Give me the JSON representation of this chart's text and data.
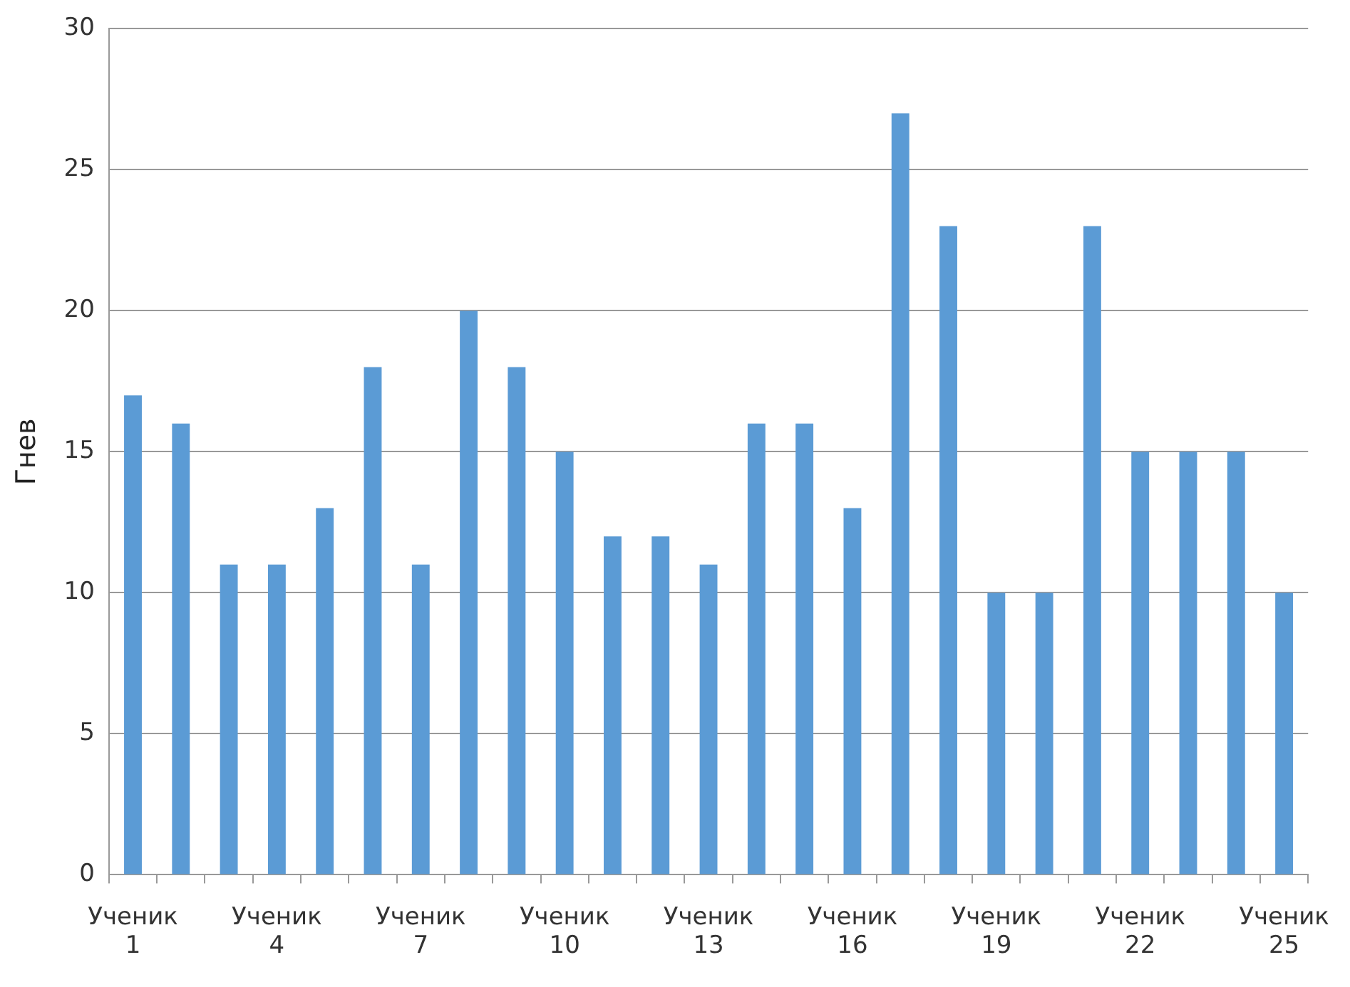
{
  "chart_data": {
    "type": "bar",
    "ylabel": "Гнев",
    "categories": [
      "Ученик 1",
      null,
      null,
      "Ученик 4",
      null,
      null,
      "Ученик 7",
      null,
      null,
      "Ученик 10",
      null,
      null,
      "Ученик 13",
      null,
      null,
      "Ученик 16",
      null,
      null,
      "Ученик 19",
      null,
      null,
      "Ученик 22",
      null,
      null,
      "Ученик 25"
    ],
    "values": [
      17,
      16,
      11,
      11,
      13,
      18,
      11,
      20,
      18,
      15,
      12,
      12,
      11,
      16,
      16,
      13,
      27,
      23,
      10,
      10,
      23,
      15,
      15,
      15,
      10
    ],
    "color": "#5b9bd5",
    "ylim": [
      0,
      30
    ],
    "yticks": [
      0,
      5,
      10,
      15,
      20,
      25,
      30
    ],
    "grid": "y",
    "legend": false
  }
}
